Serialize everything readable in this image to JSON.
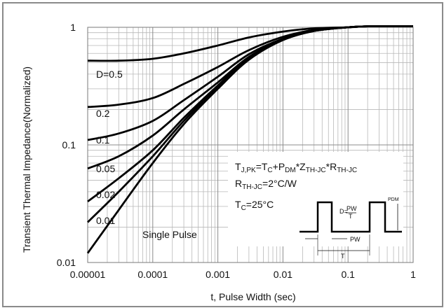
{
  "chart_data": {
    "type": "line",
    "xscale": "log",
    "yscale": "log",
    "xlim": [
      1e-05,
      1
    ],
    "ylim": [
      0.01,
      1
    ],
    "grid": true,
    "xlabel": "t, Pulse Width (sec)",
    "ylabel": "Transient Thermal Impedance(Normalized)",
    "x_ticks": [
      "0.00001",
      "0.0001",
      "0.001",
      "0.01",
      "0.1",
      "1"
    ],
    "y_ticks": [
      "0.01",
      "0.1",
      "1"
    ],
    "x": [
      1e-05,
      3e-05,
      0.0001,
      0.0003,
      0.001,
      0.003,
      0.01,
      0.03,
      0.1,
      0.2,
      0.5,
      1
    ],
    "series": [
      {
        "name": "D=0.5",
        "values": [
          0.52,
          0.52,
          0.54,
          0.6,
          0.7,
          0.82,
          0.92,
          0.98,
          1.0,
          1.02,
          1.02,
          1.02
        ]
      },
      {
        "name": "0.2",
        "values": [
          0.21,
          0.22,
          0.25,
          0.33,
          0.46,
          0.64,
          0.83,
          0.95,
          1.0,
          1.02,
          1.02,
          1.02
        ]
      },
      {
        "name": "0.1",
        "values": [
          0.11,
          0.125,
          0.16,
          0.24,
          0.38,
          0.59,
          0.8,
          0.94,
          1.0,
          1.02,
          1.02,
          1.02
        ]
      },
      {
        "name": "0.05",
        "values": [
          0.063,
          0.08,
          0.12,
          0.2,
          0.34,
          0.56,
          0.79,
          0.94,
          1.0,
          1.02,
          1.02,
          1.02
        ]
      },
      {
        "name": "0.02",
        "values": [
          0.033,
          0.052,
          0.09,
          0.17,
          0.32,
          0.55,
          0.78,
          0.93,
          1.0,
          1.02,
          1.02,
          1.02
        ]
      },
      {
        "name": "0.01",
        "values": [
          0.022,
          0.04,
          0.08,
          0.16,
          0.31,
          0.54,
          0.78,
          0.93,
          1.0,
          1.02,
          1.02,
          1.02
        ]
      },
      {
        "name": "Single Pulse",
        "values": [
          0.012,
          0.028,
          0.07,
          0.15,
          0.3,
          0.53,
          0.78,
          0.93,
          1.0,
          1.02,
          1.02,
          1.02
        ]
      }
    ],
    "annotations": {
      "formula": "T_J,PK=T_C+P_DM*Z_TH-JC*R_TH-JC",
      "rth": "R_TH-JC=2°C/W",
      "tc": "T_C=25°C",
      "inset_d_label": "D=",
      "inset_pw": "PW",
      "inset_t": "T",
      "inset_pdm": "PDM"
    }
  }
}
